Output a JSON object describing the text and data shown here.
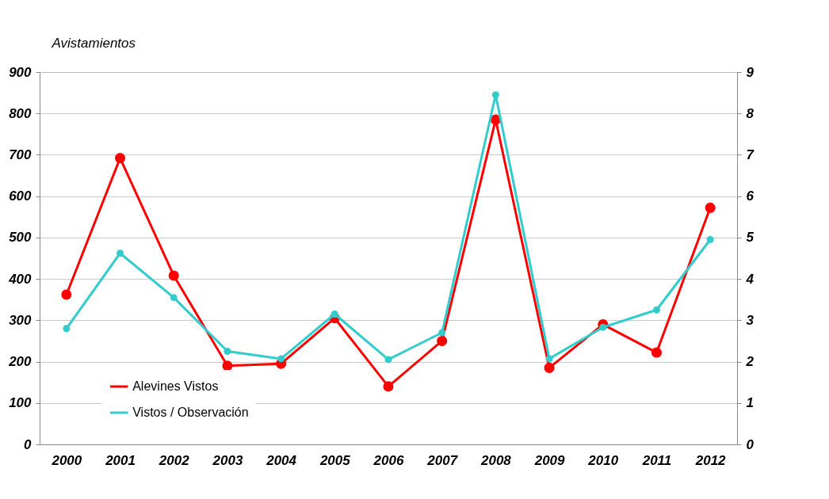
{
  "chart_data": {
    "type": "line",
    "ylabel": "Avistamientos",
    "categories": [
      "2000",
      "2001",
      "2002",
      "2003",
      "2004",
      "2005",
      "2006",
      "2007",
      "2008",
      "2009",
      "2010",
      "2011",
      "2012"
    ],
    "series": [
      {
        "name": "Alevines Vistos",
        "color": "#ff0000",
        "values": [
          362,
          692,
          408,
          190,
          195,
          305,
          140,
          250,
          785,
          185,
          290,
          222,
          572
        ]
      },
      {
        "name": "Vistos / Observación",
        "color": "#33cccc",
        "axis": "y2",
        "values": [
          2.8,
          4.62,
          3.55,
          2.25,
          2.07,
          3.15,
          2.05,
          2.7,
          8.45,
          2.07,
          2.83,
          3.25,
          4.95
        ]
      }
    ],
    "ylim": [
      0,
      900
    ],
    "yticks": [
      0,
      100,
      200,
      300,
      400,
      500,
      600,
      700,
      800,
      900
    ],
    "y2lim": [
      0,
      9
    ],
    "y2ticks": [
      0,
      1,
      2,
      3,
      4,
      5,
      6,
      7,
      8,
      9
    ],
    "grid": "y",
    "legend": "bottom left",
    "marker": "circle",
    "line_style": "solid"
  }
}
